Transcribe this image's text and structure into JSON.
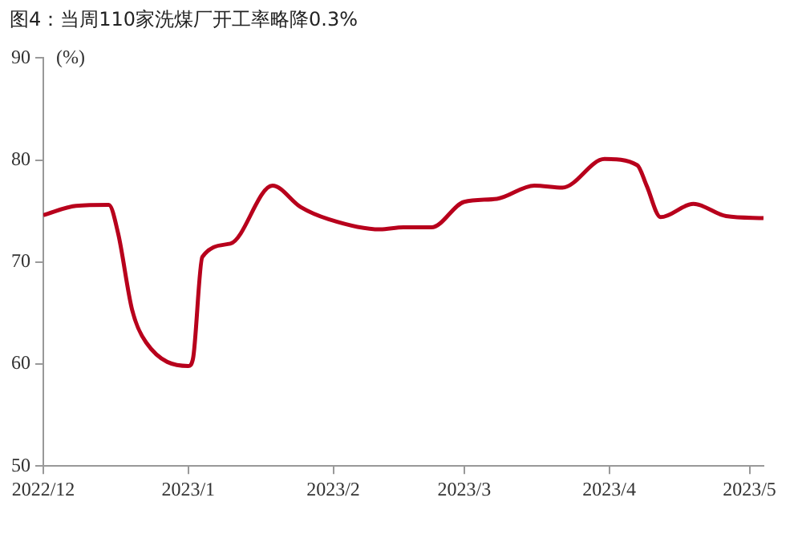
{
  "chart_data": {
    "type": "line",
    "title": "图4：当周110家洗煤厂开工率略降0.3%",
    "ylabel": "(%)",
    "x": [
      "2022-12-01",
      "2022-12-08",
      "2022-12-15",
      "2022-12-17",
      "2022-12-20",
      "2022-12-23",
      "2023-01-01",
      "2023-01-02",
      "2023-01-04",
      "2023-01-10",
      "2023-01-19",
      "2023-01-25",
      "2023-01-31",
      "2023-02-11",
      "2023-02-16",
      "2023-02-22",
      "2023-03-01",
      "2023-03-08",
      "2023-03-16",
      "2023-03-22",
      "2023-03-31",
      "2023-04-07",
      "2023-04-09",
      "2023-04-12",
      "2023-04-19",
      "2023-04-26",
      "2023-05-04"
    ],
    "series": [
      {
        "color": "#b8001c",
        "values": [
          74.6,
          75.5,
          75.6,
          72.8,
          65.3,
          62.1,
          59.8,
          60.5,
          70.5,
          71.8,
          77.5,
          75.4,
          74.2,
          73.2,
          73.4,
          73.4,
          75.9,
          76.2,
          77.5,
          77.3,
          80.1,
          79.5,
          77.5,
          74.4,
          75.7,
          74.5,
          74.3
        ]
      }
    ],
    "xlim": [
      "2022-12-01",
      "2023-05-04"
    ],
    "xticks": [
      {
        "value": "2022-12-01",
        "label": "2022/12"
      },
      {
        "value": "2023-01-01",
        "label": "2023/1"
      },
      {
        "value": "2023-02-01",
        "label": "2023/2"
      },
      {
        "value": "2023-03-01",
        "label": "2023/3"
      },
      {
        "value": "2023-04-01",
        "label": "2023/4"
      },
      {
        "value": "2023-05-01",
        "label": "2023/5"
      }
    ],
    "ylim": [
      50,
      90
    ],
    "yticks": [
      50,
      60,
      70,
      80,
      90
    ],
    "grid": false,
    "legend": false,
    "marker": "none",
    "line_style": "solid"
  }
}
